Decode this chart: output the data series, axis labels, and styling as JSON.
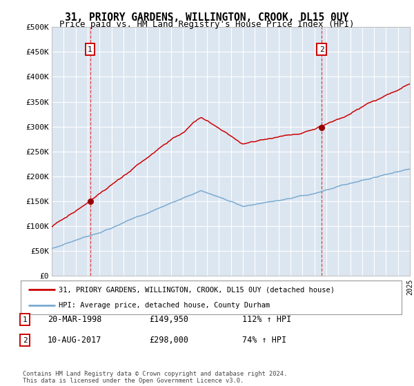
{
  "title": "31, PRIORY GARDENS, WILLINGTON, CROOK, DL15 0UY",
  "subtitle": "Price paid vs. HM Land Registry's House Price Index (HPI)",
  "y_ticks": [
    0,
    50000,
    100000,
    150000,
    200000,
    250000,
    300000,
    350000,
    400000,
    450000,
    500000
  ],
  "y_tick_labels": [
    "£0",
    "£50K",
    "£100K",
    "£150K",
    "£200K",
    "£250K",
    "£300K",
    "£350K",
    "£400K",
    "£450K",
    "£500K"
  ],
  "sale1_year": 1998.21,
  "sale1_price": 149950,
  "sale2_year": 2017.61,
  "sale2_price": 298000,
  "property_color": "#cc0000",
  "hpi_color": "#7aaad0",
  "background_color": "#dce6f1",
  "legend_line1": "31, PRIORY GARDENS, WILLINGTON, CROOK, DL15 0UY (detached house)",
  "legend_line2": "HPI: Average price, detached house, County Durham",
  "annotation1_date": "20-MAR-1998",
  "annotation1_price": "£149,950",
  "annotation1_hpi": "112% ↑ HPI",
  "annotation2_date": "10-AUG-2017",
  "annotation2_price": "£298,000",
  "annotation2_hpi": "74% ↑ HPI",
  "footer": "Contains HM Land Registry data © Crown copyright and database right 2024.\nThis data is licensed under the Open Government Licence v3.0."
}
